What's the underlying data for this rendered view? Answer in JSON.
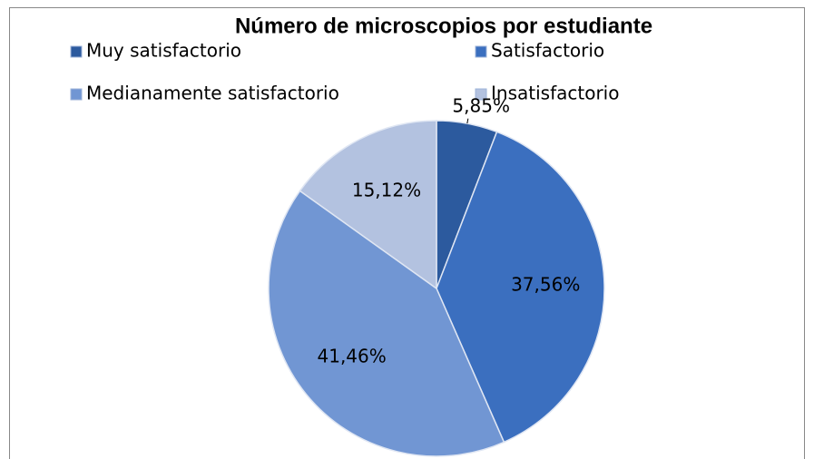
{
  "chart_data": {
    "type": "pie",
    "title": "Número de microscopios por estudiante",
    "categories": [
      "Muy satisfactorio",
      "Satisfactorio",
      "Medianamente satisfactorio",
      "Insatisfactorio"
    ],
    "values": [
      5.85,
      37.56,
      41.46,
      15.12
    ],
    "value_labels": [
      "5,85%",
      "37,56%",
      "41,46%",
      "15,12%"
    ],
    "colors": [
      "#2c5a9e",
      "#3b6fbf",
      "#7196d3",
      "#b3c2e0"
    ],
    "legend": "top"
  }
}
